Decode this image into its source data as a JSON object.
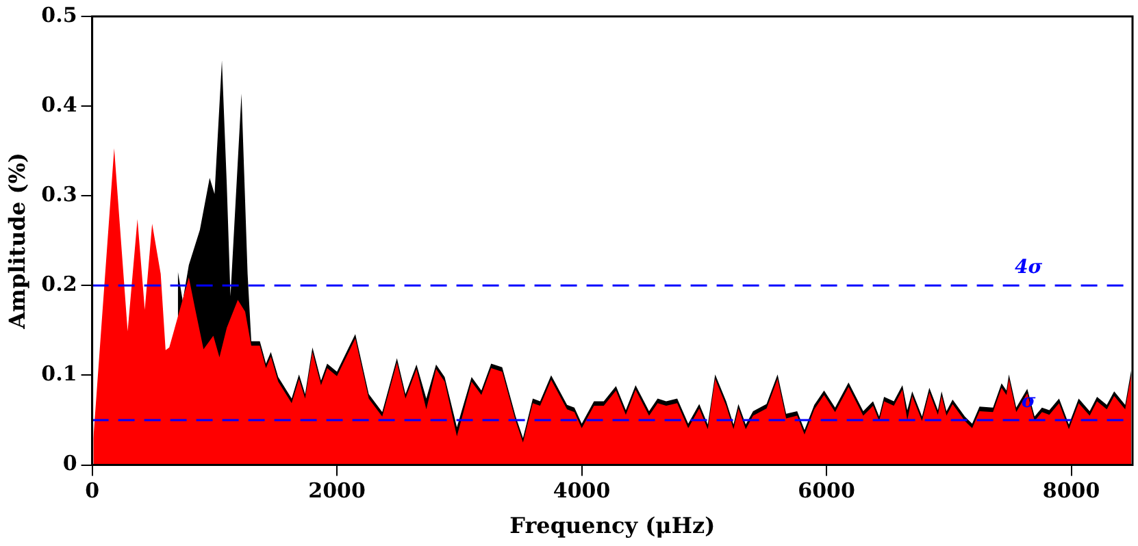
{
  "chart_data": {
    "type": "area",
    "xlabel": "Frequency (μHz)",
    "ylabel": "Amplitude (%)",
    "xlim": [
      0,
      8500
    ],
    "xticks": [
      0,
      2000,
      4000,
      6000,
      8000
    ],
    "ylim": [
      0,
      0.5
    ],
    "yticks": [
      0,
      0.1,
      0.2,
      0.3,
      0.4,
      0.5
    ],
    "grid": false,
    "series": [
      {
        "color": "#000000",
        "x": [
          700,
          740,
          790,
          880,
          960,
          1000,
          1060,
          1100,
          1130,
          1220,
          1270,
          1300,
          1370,
          1420,
          1460,
          1520,
          1630,
          1690,
          1740,
          1800,
          1870,
          1920,
          2000,
          2150,
          2260,
          2370,
          2490,
          2560,
          2650,
          2730,
          2810,
          2880,
          2980,
          3100,
          3180,
          3260,
          3350,
          3460,
          3520,
          3600,
          3660,
          3750,
          3880,
          3940,
          4000,
          4100,
          4180,
          4280,
          4360,
          4440,
          4550,
          4620,
          4690,
          4780,
          4870,
          4960,
          5030,
          5090,
          5180,
          5240,
          5280,
          5340,
          5400,
          5510,
          5600,
          5670,
          5760,
          5820,
          5900,
          5980,
          6070,
          6180,
          6300,
          6380,
          6430,
          6470,
          6550,
          6620,
          6660,
          6700,
          6780,
          6840,
          6910,
          6940,
          6980,
          7030,
          7130,
          7190,
          7250,
          7360,
          7430,
          7470,
          7490,
          7550,
          7640,
          7700,
          7760,
          7820,
          7900,
          7980,
          8060,
          8150,
          8210,
          8290,
          8350,
          8440,
          8490
        ],
        "values": [
          0.216,
          0.183,
          0.223,
          0.262,
          0.32,
          0.302,
          0.451,
          0.312,
          0.188,
          0.414,
          0.213,
          0.138,
          0.138,
          0.113,
          0.126,
          0.098,
          0.074,
          0.101,
          0.079,
          0.131,
          0.094,
          0.113,
          0.104,
          0.146,
          0.079,
          0.059,
          0.119,
          0.079,
          0.112,
          0.074,
          0.112,
          0.098,
          0.042,
          0.098,
          0.083,
          0.113,
          0.109,
          0.054,
          0.03,
          0.074,
          0.071,
          0.1,
          0.067,
          0.064,
          0.046,
          0.071,
          0.071,
          0.088,
          0.061,
          0.089,
          0.06,
          0.074,
          0.071,
          0.074,
          0.046,
          0.068,
          0.045,
          0.101,
          0.071,
          0.045,
          0.068,
          0.045,
          0.06,
          0.068,
          0.101,
          0.057,
          0.06,
          0.039,
          0.067,
          0.083,
          0.064,
          0.092,
          0.06,
          0.071,
          0.054,
          0.076,
          0.071,
          0.089,
          0.061,
          0.082,
          0.054,
          0.086,
          0.061,
          0.082,
          0.06,
          0.073,
          0.054,
          0.046,
          0.065,
          0.064,
          0.091,
          0.083,
          0.101,
          0.064,
          0.085,
          0.054,
          0.064,
          0.061,
          0.074,
          0.045,
          0.074,
          0.06,
          0.076,
          0.067,
          0.082,
          0.067,
          0.106
        ]
      },
      {
        "color": "#ff0000",
        "x": [
          10,
          180,
          290,
          370,
          430,
          490,
          560,
          600,
          630,
          790,
          840,
          910,
          990,
          1040,
          1100,
          1190,
          1250,
          1300,
          1370,
          1420,
          1460,
          1520,
          1630,
          1690,
          1740,
          1800,
          1870,
          1920,
          2000,
          2150,
          2260,
          2370,
          2490,
          2560,
          2650,
          2730,
          2810,
          2880,
          2980,
          3100,
          3180,
          3260,
          3350,
          3460,
          3520,
          3600,
          3660,
          3750,
          3880,
          3940,
          4000,
          4100,
          4180,
          4280,
          4360,
          4440,
          4550,
          4620,
          4690,
          4780,
          4870,
          4960,
          5030,
          5090,
          5180,
          5240,
          5280,
          5340,
          5400,
          5510,
          5600,
          5670,
          5760,
          5820,
          5900,
          5980,
          6070,
          6180,
          6300,
          6380,
          6430,
          6470,
          6550,
          6620,
          6660,
          6700,
          6780,
          6840,
          6910,
          6940,
          6980,
          7030,
          7130,
          7190,
          7250,
          7360,
          7430,
          7470,
          7490,
          7550,
          7640,
          7700,
          7760,
          7820,
          7900,
          7980,
          8060,
          8150,
          8210,
          8290,
          8350,
          8440,
          8490
        ],
        "values": [
          0.03,
          0.353,
          0.149,
          0.274,
          0.173,
          0.269,
          0.213,
          0.128,
          0.131,
          0.209,
          0.175,
          0.129,
          0.144,
          0.12,
          0.153,
          0.184,
          0.171,
          0.133,
          0.133,
          0.108,
          0.121,
          0.093,
          0.069,
          0.096,
          0.074,
          0.126,
          0.089,
          0.108,
          0.099,
          0.141,
          0.074,
          0.054,
          0.114,
          0.074,
          0.107,
          0.062,
          0.107,
          0.093,
          0.032,
          0.093,
          0.078,
          0.108,
          0.104,
          0.049,
          0.025,
          0.069,
          0.066,
          0.095,
          0.062,
          0.059,
          0.041,
          0.066,
          0.066,
          0.083,
          0.056,
          0.084,
          0.055,
          0.069,
          0.066,
          0.069,
          0.041,
          0.063,
          0.04,
          0.096,
          0.066,
          0.04,
          0.063,
          0.04,
          0.055,
          0.063,
          0.096,
          0.052,
          0.055,
          0.034,
          0.062,
          0.078,
          0.059,
          0.087,
          0.055,
          0.066,
          0.049,
          0.071,
          0.066,
          0.084,
          0.05,
          0.077,
          0.049,
          0.081,
          0.056,
          0.077,
          0.055,
          0.068,
          0.049,
          0.041,
          0.06,
          0.059,
          0.086,
          0.078,
          0.096,
          0.059,
          0.08,
          0.049,
          0.059,
          0.056,
          0.069,
          0.04,
          0.069,
          0.055,
          0.071,
          0.062,
          0.077,
          0.062,
          0.101
        ]
      }
    ],
    "ref_lines": [
      {
        "axis": "y",
        "value": 0.2,
        "label": "4σ",
        "color": "#0000ff",
        "line_style": "dashed"
      },
      {
        "axis": "y",
        "value": 0.05,
        "label": "σ",
        "color": "#0000ff",
        "line_style": "dashed"
      }
    ]
  }
}
